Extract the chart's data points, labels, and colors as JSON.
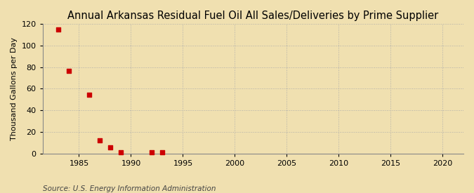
{
  "title": "Annual Arkansas Residual Fuel Oil All Sales/Deliveries by Prime Supplier",
  "ylabel": "Thousand Gallons per Day",
  "source": "Source: U.S. Energy Information Administration",
  "background_color": "#f0e0b0",
  "plot_background_color": "#f0e0b0",
  "data_points": [
    {
      "year": 1983,
      "value": 114.5
    },
    {
      "year": 1984,
      "value": 76.5
    },
    {
      "year": 1986,
      "value": 54.5
    },
    {
      "year": 1987,
      "value": 12.0
    },
    {
      "year": 1988,
      "value": 6.0
    },
    {
      "year": 1989,
      "value": 1.5
    },
    {
      "year": 1992,
      "value": 1.5
    },
    {
      "year": 1993,
      "value": 1.5
    }
  ],
  "marker_color": "#cc0000",
  "marker": "s",
  "marker_size": 4,
  "xlim": [
    1981.5,
    2022
  ],
  "ylim": [
    0,
    120
  ],
  "xticks": [
    1985,
    1990,
    1995,
    2000,
    2005,
    2010,
    2015,
    2020
  ],
  "yticks": [
    0,
    20,
    40,
    60,
    80,
    100,
    120
  ],
  "grid_color": "#aaaaaa",
  "grid_style": ":",
  "title_fontsize": 10.5,
  "label_fontsize": 8,
  "tick_fontsize": 8,
  "source_fontsize": 7.5
}
